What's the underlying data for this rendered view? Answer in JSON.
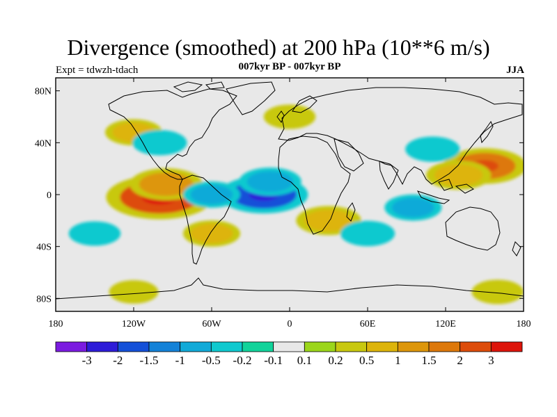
{
  "header": {
    "title": "Divergence (smoothed) at 200 hPa (10**6 m/s)",
    "left_label": "Expt = tdwzh-tdach",
    "center_label": "007kyr BP - 007kyr BP",
    "right_label": "JJA"
  },
  "map": {
    "lon_range": [
      -180,
      180
    ],
    "lat_range": [
      -90,
      90
    ],
    "background_color": "#e8e8e8",
    "x_ticks": [
      {
        "value": -180,
        "label": "180"
      },
      {
        "value": -120,
        "label": "120W"
      },
      {
        "value": -60,
        "label": "60W"
      },
      {
        "value": 0,
        "label": "0"
      },
      {
        "value": 60,
        "label": "60E"
      },
      {
        "value": 120,
        "label": "120E"
      },
      {
        "value": 180,
        "label": "180"
      }
    ],
    "y_ticks": [
      {
        "value": 80,
        "label": "80N"
      },
      {
        "value": 40,
        "label": "40N"
      },
      {
        "value": 0,
        "label": "0"
      },
      {
        "value": -40,
        "label": "40S"
      },
      {
        "value": -80,
        "label": "80S"
      }
    ]
  },
  "colorbar": {
    "colors": [
      "#7b1be0",
      "#2d1cd8",
      "#1450d8",
      "#1482d8",
      "#11aad8",
      "#0fc9cf",
      "#11d39a",
      "#e8e8e8",
      "#9bd61a",
      "#c8c80f",
      "#ddb40a",
      "#dd960a",
      "#dd780a",
      "#dd4c0a",
      "#dd140a"
    ],
    "labels": [
      "-3",
      "-2",
      "-1.5",
      "-1",
      "-0.5",
      "-0.2",
      "-0.1",
      "0.1",
      "0.2",
      "0.5",
      "1",
      "1.5",
      "2",
      "3"
    ]
  },
  "chart_data": {
    "type": "heatmap",
    "title": "Divergence (smoothed) at 200 hPa (10**6 m/s)",
    "xlabel": "",
    "ylabel": "",
    "xlim": [
      -180,
      180
    ],
    "ylim": [
      -90,
      90
    ],
    "levels": [
      -3,
      -2,
      -1.5,
      -1,
      -0.5,
      -0.2,
      -0.1,
      0.1,
      0.2,
      0.5,
      1,
      1.5,
      2,
      3
    ],
    "features": [
      {
        "lon": -100,
        "lat": -2,
        "value": 2.5
      },
      {
        "lon": -95,
        "lat": 8,
        "value": 1.2
      },
      {
        "lon": -20,
        "lat": 0,
        "value": -1.8
      },
      {
        "lon": -15,
        "lat": 10,
        "value": -0.8
      },
      {
        "lon": 150,
        "lat": 22,
        "value": 1.6
      },
      {
        "lon": 130,
        "lat": 15,
        "value": 0.9
      },
      {
        "lon": 30,
        "lat": -20,
        "value": 0.9
      },
      {
        "lon": 95,
        "lat": -10,
        "value": -0.6
      },
      {
        "lon": -60,
        "lat": 0,
        "value": -0.6
      },
      {
        "lon": -120,
        "lat": 48,
        "value": 0.6
      },
      {
        "lon": -100,
        "lat": 40,
        "value": -0.5
      },
      {
        "lon": 110,
        "lat": 35,
        "value": -0.5
      },
      {
        "lon": -150,
        "lat": -30,
        "value": -0.4
      },
      {
        "lon": 60,
        "lat": -30,
        "value": -0.5
      },
      {
        "lon": -60,
        "lat": -30,
        "value": 0.6
      },
      {
        "lon": -120,
        "lat": -75,
        "value": 0.3
      },
      {
        "lon": 160,
        "lat": -75,
        "value": 0.4
      },
      {
        "lon": 0,
        "lat": 60,
        "value": 0.4
      }
    ]
  }
}
